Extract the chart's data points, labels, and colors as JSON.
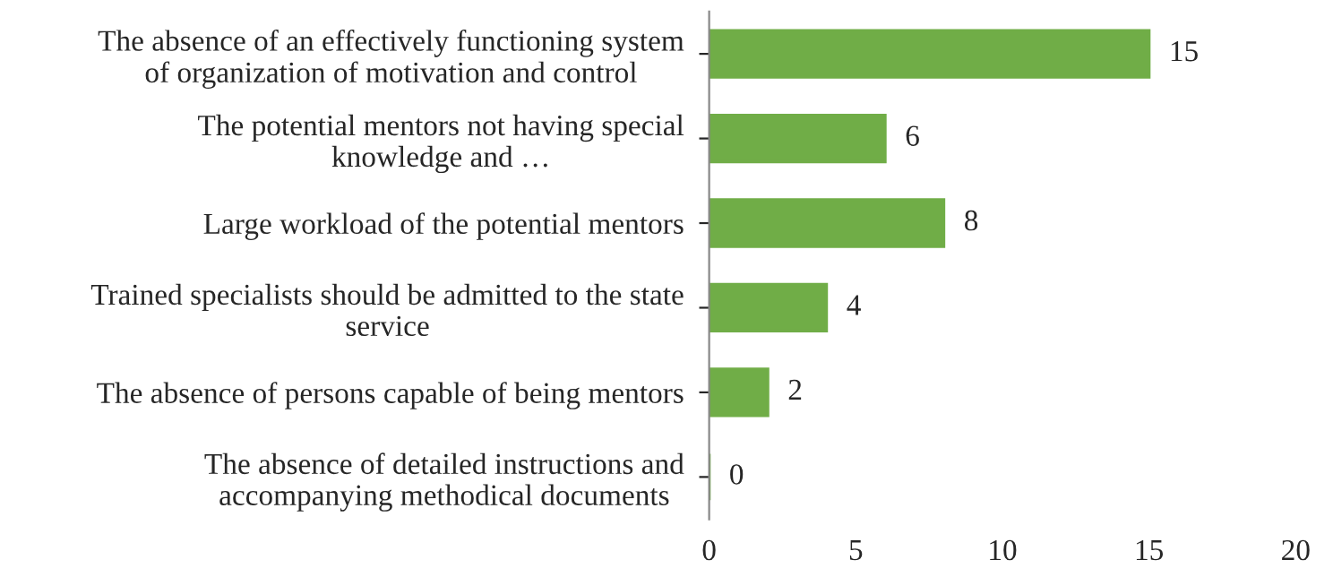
{
  "chart_data": {
    "type": "bar",
    "orientation": "horizontal",
    "categories": [
      "The absence of an effectively functioning system\nof organization of motivation and control",
      "The potential mentors not having special\nknowledge and …",
      "Large workload of the potential mentors",
      "Trained specialists should be admitted to the state\nservice",
      "The absence of persons capable of being mentors",
      "The absence of detailed instructions and\naccompanying methodical documents"
    ],
    "values": [
      15,
      6,
      8,
      4,
      2,
      0
    ],
    "color": "#70ad47",
    "xlim": [
      0,
      20
    ],
    "xticks": [
      0,
      5,
      10,
      15,
      20
    ],
    "data_labels": true,
    "grid": false,
    "legend": false
  }
}
